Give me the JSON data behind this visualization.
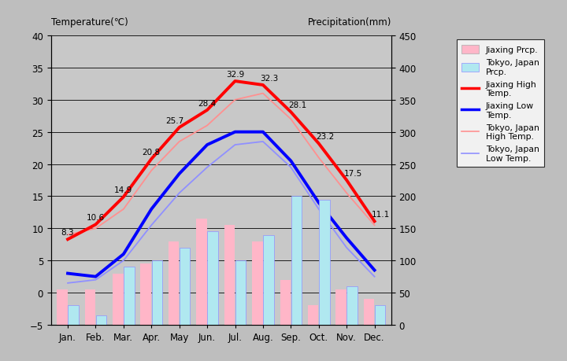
{
  "months": [
    "Jan.",
    "Feb.",
    "Mar.",
    "Apr.",
    "May",
    "Jun.",
    "Jul.",
    "Aug.",
    "Sep.",
    "Oct.",
    "Nov.",
    "Dec."
  ],
  "jiaxing_high": [
    8.3,
    10.6,
    14.9,
    20.8,
    25.7,
    28.4,
    32.9,
    32.3,
    28.1,
    23.2,
    17.5,
    11.1
  ],
  "jiaxing_low": [
    3.0,
    2.5,
    6.0,
    13.0,
    18.5,
    23.0,
    25.0,
    25.0,
    20.5,
    14.0,
    8.5,
    3.5
  ],
  "tokyo_high": [
    9.0,
    10.0,
    13.0,
    19.0,
    23.5,
    26.0,
    30.0,
    31.0,
    27.0,
    21.0,
    15.5,
    10.5
  ],
  "tokyo_low": [
    1.5,
    2.0,
    5.0,
    10.5,
    15.5,
    19.5,
    23.0,
    23.5,
    19.5,
    13.0,
    7.0,
    2.5
  ],
  "jiaxing_prcp": [
    55,
    55,
    80,
    95,
    130,
    165,
    155,
    130,
    70,
    30,
    55,
    40
  ],
  "tokyo_prcp": [
    30,
    15,
    90,
    100,
    120,
    145,
    100,
    140,
    200,
    195,
    60,
    30
  ],
  "temp_ylim": [
    -5,
    40
  ],
  "prcp_ylim": [
    0,
    450
  ],
  "bg_color": "#bebebe",
  "plot_bg": "#c8c8c8",
  "jiaxing_high_color": "#ff0000",
  "jiaxing_low_color": "#0000ff",
  "tokyo_high_color": "#ff9090",
  "tokyo_low_color": "#9090ff",
  "jiaxing_prcp_color": "#ffb6c8",
  "tokyo_prcp_color": "#b0e8f0",
  "title_left": "Temperature(℃)",
  "title_right": "Precipitation(mm)",
  "yticks_temp": [
    -5,
    0,
    5,
    10,
    15,
    20,
    25,
    30,
    35,
    40
  ],
  "yticks_prcp": [
    0,
    50,
    100,
    150,
    200,
    250,
    300,
    350,
    400,
    450
  ]
}
